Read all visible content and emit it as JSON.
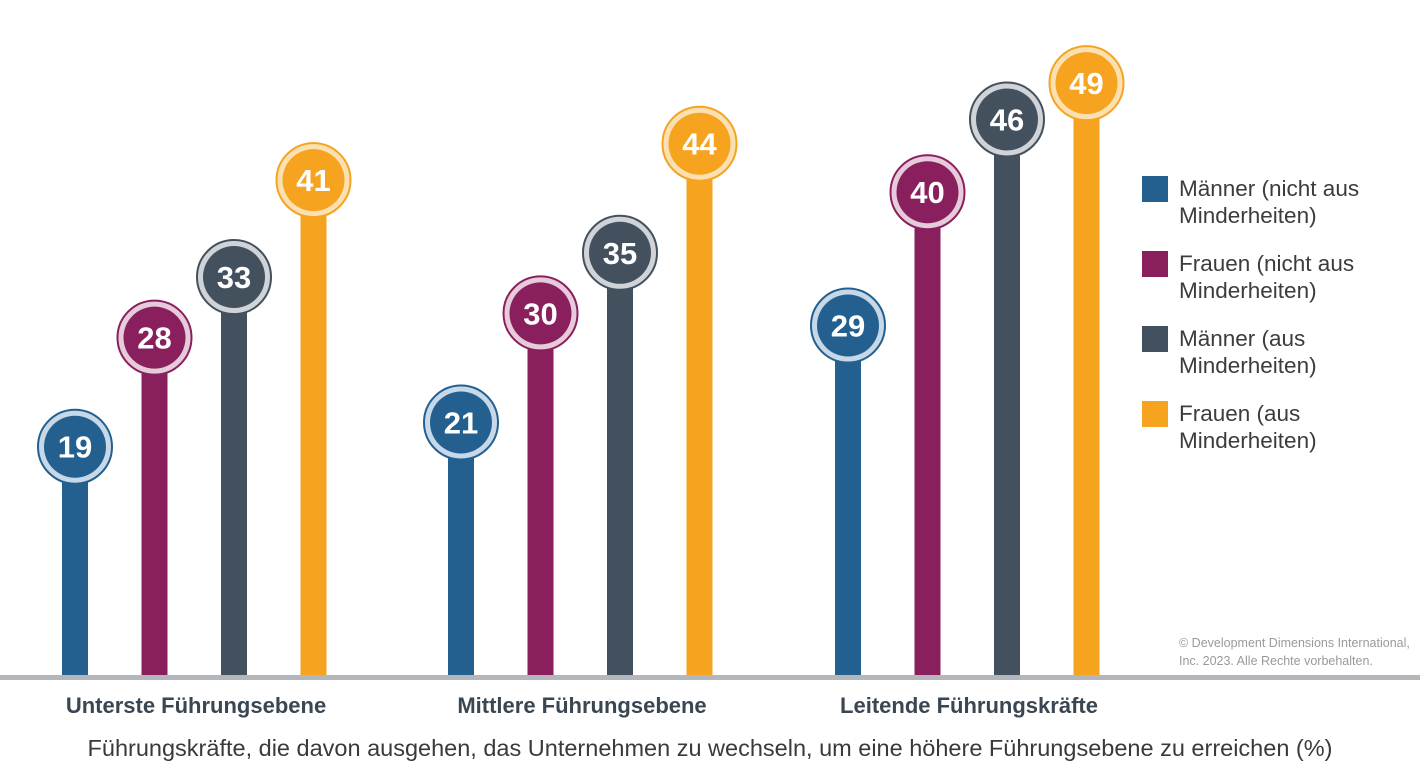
{
  "chart_data": {
    "type": "bar",
    "categories": [
      "Unterste Führungsebene",
      "Mittlere Führungsebene",
      "Leitende Führungskräfte"
    ],
    "series": [
      {
        "name": "Männer (nicht aus Minderheiten)",
        "values": [
          19,
          21,
          29
        ],
        "color": "#23608f",
        "ring": "#c7d8e8"
      },
      {
        "name": "Frauen (nicht aus Minderheiten)",
        "values": [
          28,
          30,
          40
        ],
        "color": "#8a1f5e",
        "ring": "#e6cbdb"
      },
      {
        "name": "Männer (aus Minderheiten)",
        "values": [
          33,
          35,
          46
        ],
        "color": "#43505d",
        "ring": "#d0d4d8"
      },
      {
        "name": "Frauen (aus Minderheiten)",
        "values": [
          41,
          44,
          49
        ],
        "color": "#f6a31f",
        "ring": "#fbe1b2"
      }
    ],
    "xlabel": "Führungskräfte, die davon ausgehen, das Unternehmen zu wechseln, um eine höhere Führungsebene zu erreichen (%)",
    "ylabel": "",
    "legend_position": "right",
    "grid": false
  },
  "copyright": "© Development Dimensions International, Inc. 2023. Alle Rechte vorbehalten.",
  "colors": {
    "baseline": "#b3b7bc"
  }
}
